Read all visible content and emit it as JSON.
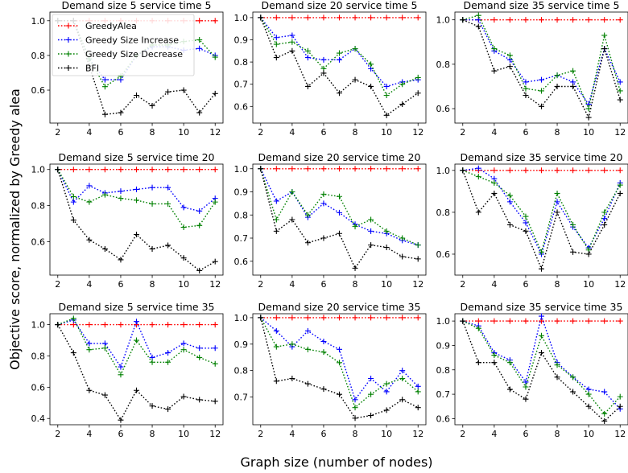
{
  "figure": {
    "ylabel": "Objective score, normalized by Greedy alea",
    "xlabel": "Graph size (number of nodes)"
  },
  "legend": {
    "placement": "top-left of first panel",
    "entries": [
      "GreedyAlea",
      "Greedy Size Increase",
      "Greedy Size Decrease",
      "BFI"
    ]
  },
  "series_styles": [
    {
      "name": "GreedyAlea",
      "color": "#ff0000"
    },
    {
      "name": "Greedy Size Increase",
      "color": "#0000ff"
    },
    {
      "name": "Greedy Size Decrease",
      "color": "#008000"
    },
    {
      "name": "BFI",
      "color": "#000000"
    }
  ],
  "chart_data": [
    {
      "type": "line",
      "title": "Demand size 5 service time 5",
      "x": [
        2,
        3,
        4,
        5,
        6,
        7,
        8,
        9,
        10,
        11,
        12
      ],
      "xticks": [
        2,
        4,
        6,
        8,
        10,
        12
      ],
      "ylim": [
        0.41,
        1.05
      ],
      "yticks": [
        0.6,
        0.8,
        1.0
      ],
      "series": [
        {
          "name": "GreedyAlea",
          "values": [
            1,
            1,
            1,
            1,
            1,
            1,
            1,
            1,
            1,
            1,
            1
          ]
        },
        {
          "name": "Greedy Size Increase",
          "values": [
            1,
            1,
            0.78,
            0.66,
            0.66,
            0.8,
            0.85,
            0.85,
            0.83,
            0.84,
            0.8
          ]
        },
        {
          "name": "Greedy Size Decrease",
          "values": [
            1,
            1,
            0.78,
            0.62,
            0.68,
            0.8,
            0.86,
            0.86,
            0.88,
            0.89,
            0.79
          ]
        },
        {
          "name": "BFI",
          "values": [
            1,
            1,
            0.74,
            0.46,
            0.47,
            0.57,
            0.51,
            0.59,
            0.6,
            0.47,
            0.58
          ]
        }
      ]
    },
    {
      "type": "line",
      "title": "Demand size 20 service time 5",
      "x": [
        2,
        3,
        4,
        5,
        6,
        7,
        8,
        9,
        10,
        11,
        12
      ],
      "xticks": [
        2,
        4,
        6,
        8,
        10,
        12
      ],
      "ylim": [
        0.525,
        1.025
      ],
      "yticks": [
        0.6,
        0.7,
        0.8,
        0.9,
        1.0
      ],
      "series": [
        {
          "name": "GreedyAlea",
          "values": [
            1,
            1,
            1,
            1,
            1,
            1,
            1,
            1,
            1,
            1,
            1
          ]
        },
        {
          "name": "Greedy Size Increase",
          "values": [
            1,
            0.91,
            0.92,
            0.82,
            0.81,
            0.81,
            0.86,
            0.77,
            0.69,
            0.71,
            0.72
          ]
        },
        {
          "name": "Greedy Size Decrease",
          "values": [
            1,
            0.88,
            0.89,
            0.85,
            0.77,
            0.84,
            0.86,
            0.79,
            0.65,
            0.7,
            0.73
          ]
        },
        {
          "name": "BFI",
          "values": [
            1,
            0.82,
            0.85,
            0.69,
            0.75,
            0.66,
            0.72,
            0.69,
            0.56,
            0.61,
            0.66
          ]
        }
      ]
    },
    {
      "type": "line",
      "title": "Demand size 35 service time 5",
      "x": [
        2,
        3,
        4,
        5,
        6,
        7,
        8,
        9,
        10,
        11,
        12
      ],
      "xticks": [
        2,
        4,
        6,
        8,
        10,
        12
      ],
      "ylim": [
        0.535,
        1.035
      ],
      "yticks": [
        0.6,
        0.8,
        1.0
      ],
      "series": [
        {
          "name": "GreedyAlea",
          "values": [
            1,
            1,
            1,
            1,
            1,
            1,
            1,
            1,
            1,
            1,
            1
          ]
        },
        {
          "name": "Greedy Size Increase",
          "values": [
            1,
            1.0,
            0.86,
            0.82,
            0.72,
            0.73,
            0.75,
            0.72,
            0.62,
            0.87,
            0.72
          ]
        },
        {
          "name": "Greedy Size Decrease",
          "values": [
            1,
            1.02,
            0.87,
            0.84,
            0.69,
            0.68,
            0.75,
            0.77,
            0.6,
            0.93,
            0.68
          ]
        },
        {
          "name": "BFI",
          "values": [
            1,
            0.97,
            0.77,
            0.79,
            0.66,
            0.61,
            0.7,
            0.7,
            0.56,
            0.87,
            0.64
          ]
        }
      ]
    },
    {
      "type": "line",
      "title": "Demand size 5 service time 20",
      "x": [
        2,
        3,
        4,
        5,
        6,
        7,
        8,
        9,
        10,
        11,
        12
      ],
      "xticks": [
        2,
        4,
        6,
        8,
        10,
        12
      ],
      "ylim": [
        0.415,
        1.03
      ],
      "yticks": [
        0.6,
        0.8,
        1.0
      ],
      "series": [
        {
          "name": "GreedyAlea",
          "values": [
            1,
            1,
            1,
            1,
            1,
            1,
            1,
            1,
            1,
            1,
            1
          ]
        },
        {
          "name": "Greedy Size Increase",
          "values": [
            1,
            0.82,
            0.91,
            0.87,
            0.88,
            0.89,
            0.9,
            0.9,
            0.79,
            0.77,
            0.84
          ]
        },
        {
          "name": "Greedy Size Decrease",
          "values": [
            1,
            0.85,
            0.82,
            0.86,
            0.84,
            0.83,
            0.81,
            0.81,
            0.68,
            0.69,
            0.82
          ]
        },
        {
          "name": "BFI",
          "values": [
            1,
            0.72,
            0.61,
            0.56,
            0.5,
            0.64,
            0.56,
            0.58,
            0.51,
            0.44,
            0.49
          ]
        }
      ]
    },
    {
      "type": "line",
      "title": "Demand size 20 service time 20",
      "x": [
        2,
        3,
        4,
        5,
        6,
        7,
        8,
        9,
        10,
        11,
        12
      ],
      "xticks": [
        2,
        4,
        6,
        8,
        10,
        12
      ],
      "ylim": [
        0.54,
        1.02
      ],
      "yticks": [
        0.6,
        0.7,
        0.8,
        0.9,
        1.0
      ],
      "series": [
        {
          "name": "GreedyAlea",
          "values": [
            1,
            1,
            1,
            1,
            1,
            1,
            1,
            1,
            1,
            1,
            1
          ]
        },
        {
          "name": "Greedy Size Increase",
          "values": [
            1,
            0.86,
            0.9,
            0.79,
            0.85,
            0.81,
            0.76,
            0.73,
            0.72,
            0.69,
            0.67
          ]
        },
        {
          "name": "Greedy Size Decrease",
          "values": [
            1,
            0.78,
            0.9,
            0.8,
            0.89,
            0.88,
            0.75,
            0.78,
            0.73,
            0.7,
            0.67
          ]
        },
        {
          "name": "BFI",
          "values": [
            1,
            0.73,
            0.78,
            0.68,
            0.7,
            0.72,
            0.57,
            0.67,
            0.66,
            0.62,
            0.61
          ]
        }
      ]
    },
    {
      "type": "line",
      "title": "Demand size 35 service time 20",
      "x": [
        2,
        3,
        4,
        5,
        6,
        7,
        8,
        9,
        10,
        11,
        12
      ],
      "xticks": [
        2,
        4,
        6,
        8,
        10,
        12
      ],
      "ylim": [
        0.5,
        1.03
      ],
      "yticks": [
        0.6,
        0.8,
        1.0
      ],
      "series": [
        {
          "name": "GreedyAlea",
          "values": [
            1,
            1,
            1,
            1,
            1,
            1,
            1,
            1,
            1,
            1,
            1
          ]
        },
        {
          "name": "Greedy Size Increase",
          "values": [
            1,
            1.01,
            0.96,
            0.85,
            0.75,
            0.6,
            0.85,
            0.73,
            0.63,
            0.77,
            0.94
          ]
        },
        {
          "name": "Greedy Size Decrease",
          "values": [
            1,
            0.97,
            0.94,
            0.88,
            0.78,
            0.61,
            0.89,
            0.74,
            0.62,
            0.8,
            0.93
          ]
        },
        {
          "name": "BFI",
          "values": [
            1,
            0.8,
            0.89,
            0.74,
            0.71,
            0.53,
            0.8,
            0.61,
            0.6,
            0.74,
            0.89
          ]
        }
      ]
    },
    {
      "type": "line",
      "title": "Demand size 5 service time 35",
      "x": [
        2,
        3,
        4,
        5,
        6,
        7,
        8,
        9,
        10,
        11,
        12
      ],
      "xticks": [
        2,
        4,
        6,
        8,
        10,
        12
      ],
      "ylim": [
        0.36,
        1.07
      ],
      "yticks": [
        0.4,
        0.6,
        0.8,
        1.0
      ],
      "series": [
        {
          "name": "GreedyAlea",
          "values": [
            1,
            1,
            1,
            1,
            1,
            1,
            1,
            1,
            1,
            1,
            1
          ]
        },
        {
          "name": "Greedy Size Increase",
          "values": [
            1,
            1.03,
            0.88,
            0.88,
            0.73,
            1.02,
            0.79,
            0.82,
            0.88,
            0.85,
            0.85
          ]
        },
        {
          "name": "Greedy Size Decrease",
          "values": [
            1,
            1.04,
            0.84,
            0.85,
            0.68,
            0.9,
            0.76,
            0.76,
            0.84,
            0.79,
            0.75
          ]
        },
        {
          "name": "BFI",
          "values": [
            1,
            0.82,
            0.58,
            0.55,
            0.39,
            0.58,
            0.48,
            0.46,
            0.54,
            0.52,
            0.51
          ]
        }
      ]
    },
    {
      "type": "line",
      "title": "Demand size 20 service time 35",
      "x": [
        2,
        3,
        4,
        5,
        6,
        7,
        8,
        9,
        10,
        11,
        12
      ],
      "xticks": [
        2,
        4,
        6,
        8,
        10,
        12
      ],
      "ylim": [
        0.595,
        1.015
      ],
      "yticks": [
        0.7,
        0.8,
        0.9,
        1.0
      ],
      "series": [
        {
          "name": "GreedyAlea",
          "values": [
            1,
            1,
            1,
            1,
            1,
            1,
            1,
            1,
            1,
            1,
            1
          ]
        },
        {
          "name": "Greedy Size Increase",
          "values": [
            1,
            0.95,
            0.89,
            0.95,
            0.91,
            0.88,
            0.69,
            0.77,
            0.72,
            0.8,
            0.74
          ]
        },
        {
          "name": "Greedy Size Decrease",
          "values": [
            1,
            0.89,
            0.9,
            0.88,
            0.87,
            0.83,
            0.66,
            0.71,
            0.75,
            0.77,
            0.72
          ]
        },
        {
          "name": "BFI",
          "values": [
            1,
            0.76,
            0.77,
            0.75,
            0.73,
            0.71,
            0.62,
            0.63,
            0.65,
            0.69,
            0.66
          ]
        }
      ]
    },
    {
      "type": "line",
      "title": "Demand size 35 service time 35",
      "x": [
        2,
        3,
        4,
        5,
        6,
        7,
        8,
        9,
        10,
        11,
        12
      ],
      "xticks": [
        2,
        4,
        6,
        8,
        10,
        12
      ],
      "ylim": [
        0.575,
        1.03
      ],
      "yticks": [
        0.6,
        0.7,
        0.8,
        0.9,
        1.0
      ],
      "series": [
        {
          "name": "GreedyAlea",
          "values": [
            1,
            1,
            1,
            1,
            1,
            1,
            1,
            1,
            1,
            1,
            1
          ]
        },
        {
          "name": "Greedy Size Increase",
          "values": [
            1,
            0.98,
            0.87,
            0.84,
            0.75,
            1.02,
            0.83,
            0.77,
            0.72,
            0.71,
            0.64
          ]
        },
        {
          "name": "Greedy Size Decrease",
          "values": [
            1,
            0.97,
            0.86,
            0.83,
            0.73,
            0.94,
            0.82,
            0.77,
            0.7,
            0.62,
            0.69
          ]
        },
        {
          "name": "BFI",
          "values": [
            1,
            0.83,
            0.83,
            0.72,
            0.68,
            0.87,
            0.77,
            0.71,
            0.65,
            0.59,
            0.65
          ]
        }
      ]
    }
  ]
}
